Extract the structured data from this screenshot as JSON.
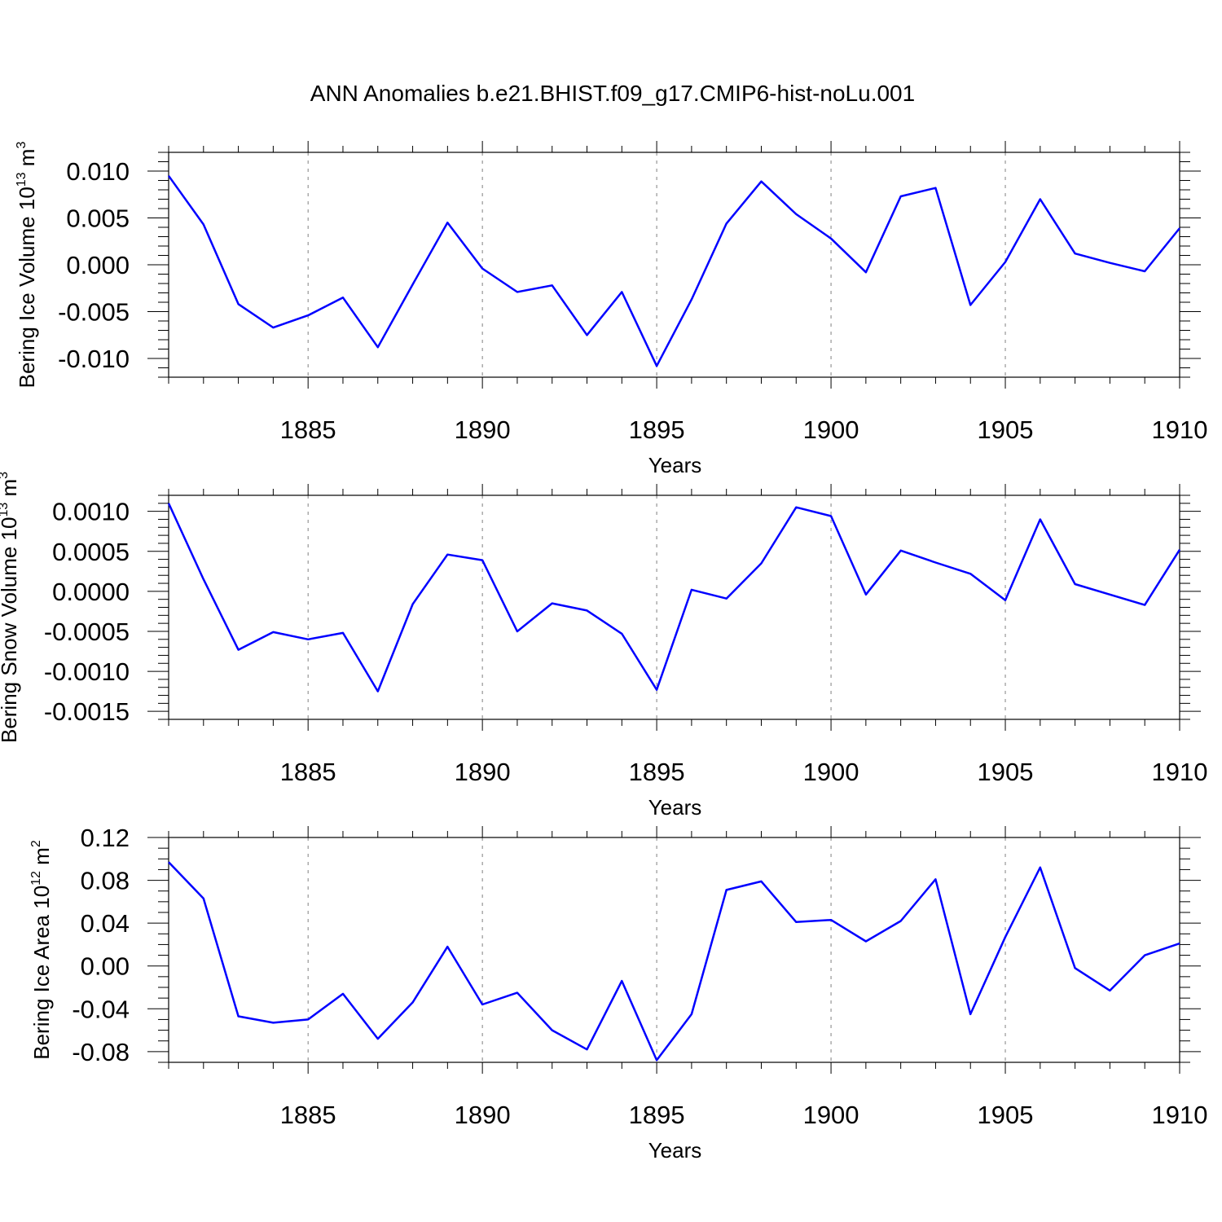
{
  "title": "ANN Anomalies b.e21.BHIST.f09_g17.CMIP6-hist-noLu.001",
  "colors": {
    "line": "#0000ff",
    "axis": "#000000",
    "grid": "#808080"
  },
  "chart_data": [
    {
      "type": "line",
      "ylabel_main": "Bering Ice Volume 10",
      "ylabel_exp": "13",
      "ylabel_unit": " m",
      "ylabel_unit_exp": "3",
      "xlabel": "Years",
      "xlim": [
        1881,
        1910
      ],
      "ylim": [
        -0.012,
        0.012
      ],
      "xticks": [
        1885,
        1890,
        1895,
        1900,
        1905,
        1910
      ],
      "xtick_labels": [
        "1885",
        "1890",
        "1895",
        "1900",
        "1905",
        "1910"
      ],
      "yticks": [
        -0.01,
        -0.005,
        0,
        0.005,
        0.01
      ],
      "ytick_labels": [
        "-0.010",
        "-0.005",
        "0.000",
        "0.005",
        "0.010"
      ],
      "y_minor_step": 0.001,
      "grid": "vertical dashed at major x ticks",
      "x": [
        1881,
        1882,
        1883,
        1884,
        1885,
        1886,
        1887,
        1888,
        1889,
        1890,
        1891,
        1892,
        1893,
        1894,
        1895,
        1896,
        1897,
        1898,
        1899,
        1900,
        1901,
        1902,
        1903,
        1904,
        1905,
        1906,
        1907,
        1908,
        1909,
        1910
      ],
      "values": [
        0.0095,
        0.0043,
        -0.0042,
        -0.0067,
        -0.0054,
        -0.0035,
        -0.0088,
        -0.0021,
        0.0045,
        -0.0004,
        -0.0029,
        -0.0022,
        -0.0075,
        -0.0029,
        -0.0108,
        -0.0037,
        0.0044,
        0.0089,
        0.0054,
        0.0028,
        -0.0008,
        0.0073,
        0.0082,
        -0.0043,
        0.0003,
        0.007,
        0.0012,
        0.0002,
        -0.0007,
        0.0039
      ]
    },
    {
      "type": "line",
      "ylabel_main": "Bering Snow Volume 10",
      "ylabel_exp": "13",
      "ylabel_unit": " m",
      "ylabel_unit_exp": "3",
      "xlabel": "Years",
      "xlim": [
        1881,
        1910
      ],
      "ylim": [
        -0.0016,
        0.0012
      ],
      "xticks": [
        1885,
        1890,
        1895,
        1900,
        1905,
        1910
      ],
      "xtick_labels": [
        "1885",
        "1890",
        "1895",
        "1900",
        "1905",
        "1910"
      ],
      "yticks": [
        -0.0015,
        -0.001,
        -0.0005,
        0,
        0.0005,
        0.001
      ],
      "ytick_labels": [
        "-0.0015",
        "-0.0010",
        "-0.0005",
        "0.0000",
        "0.0005",
        "0.0010"
      ],
      "y_minor_step": 0.0001,
      "grid": "vertical dashed at major x ticks",
      "x": [
        1881,
        1882,
        1883,
        1884,
        1885,
        1886,
        1887,
        1888,
        1889,
        1890,
        1891,
        1892,
        1893,
        1894,
        1895,
        1896,
        1897,
        1898,
        1899,
        1900,
        1901,
        1902,
        1903,
        1904,
        1905,
        1906,
        1907,
        1908,
        1909,
        1910
      ],
      "values": [
        0.0011,
        0.00015,
        -0.00073,
        -0.00051,
        -0.0006,
        -0.00052,
        -0.00125,
        -0.00016,
        0.00046,
        0.00039,
        -0.0005,
        -0.00015,
        -0.00024,
        -0.00053,
        -0.00123,
        2e-05,
        -9e-05,
        0.00035,
        0.00105,
        0.00094,
        -4e-05,
        0.00051,
        0.00036,
        0.00022,
        -0.00011,
        0.0009,
        9e-05,
        -4e-05,
        -0.00017,
        0.00052
      ]
    },
    {
      "type": "line",
      "ylabel_main": "Bering Ice Area 10",
      "ylabel_exp": "12",
      "ylabel_unit": " m",
      "ylabel_unit_exp": "2",
      "xlabel": "Years",
      "xlim": [
        1881,
        1910
      ],
      "ylim": [
        -0.09,
        0.12
      ],
      "xticks": [
        1885,
        1890,
        1895,
        1900,
        1905,
        1910
      ],
      "xtick_labels": [
        "1885",
        "1890",
        "1895",
        "1900",
        "1905",
        "1910"
      ],
      "yticks": [
        -0.08,
        -0.04,
        0,
        0.04,
        0.08,
        0.12
      ],
      "ytick_labels": [
        "-0.08",
        "-0.04",
        "0.00",
        "0.04",
        "0.08",
        "0.12"
      ],
      "y_minor_step": 0.01,
      "grid": "vertical dashed at major x ticks",
      "x": [
        1881,
        1882,
        1883,
        1884,
        1885,
        1886,
        1887,
        1888,
        1889,
        1890,
        1891,
        1892,
        1893,
        1894,
        1895,
        1896,
        1897,
        1898,
        1899,
        1900,
        1901,
        1902,
        1903,
        1904,
        1905,
        1906,
        1907,
        1908,
        1909,
        1910
      ],
      "values": [
        0.097,
        0.063,
        -0.047,
        -0.053,
        -0.05,
        -0.026,
        -0.068,
        -0.034,
        0.018,
        -0.036,
        -0.025,
        -0.06,
        -0.078,
        -0.014,
        -0.088,
        -0.045,
        0.071,
        0.079,
        0.041,
        0.043,
        0.023,
        0.042,
        0.081,
        -0.045,
        0.027,
        0.092,
        -0.002,
        -0.023,
        0.01,
        0.021
      ]
    }
  ]
}
